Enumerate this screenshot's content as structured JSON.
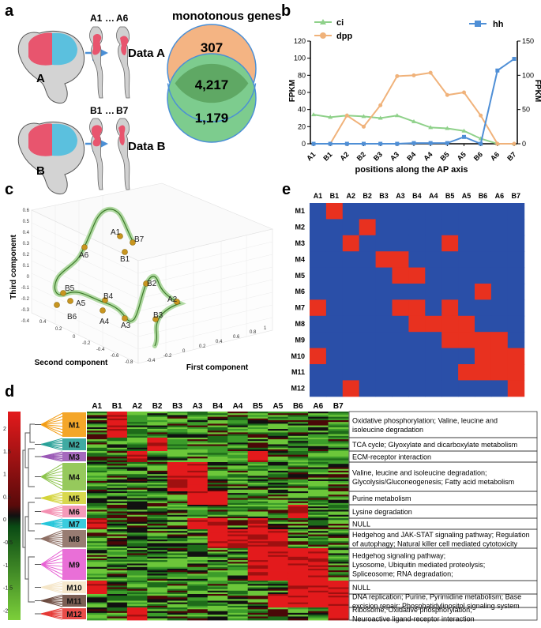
{
  "panels": {
    "a": "a",
    "b": "b",
    "c": "c",
    "d": "d",
    "e": "e"
  },
  "panel_a": {
    "venn_title": "monotonous genes",
    "venn_top": "307",
    "venn_mid": "4,217",
    "venn_bot": "1,179",
    "row1": {
      "disc": "A",
      "first": "A1",
      "dots": "…",
      "last": "A6",
      "dataset": "Data A"
    },
    "row2": {
      "disc": "B",
      "first": "B1",
      "dots": "…",
      "last": "B7",
      "dataset": "Data B"
    },
    "colors": {
      "pink": "#e8556e",
      "cyan": "#5bc0de",
      "orange": "#f4b483",
      "green": "#7dcc8e",
      "dark_green": "#5fa864",
      "arrow": "#4a8fd6"
    }
  },
  "panel_b": {
    "legend_ci": "ci",
    "legend_dpp": "dpp",
    "legend_hh": "hh",
    "ylabel_left": "FPKM",
    "ylabel_right": "FPKM",
    "xlabel": "positions along the AP axis"
  },
  "panel_c": {
    "xlabel": "First component",
    "ylabel": "Second component",
    "zlabel": "Third component",
    "points": [
      "A1",
      "B7",
      "A6",
      "B1",
      "B2",
      "A2",
      "B3",
      "A3",
      "A4",
      "B4",
      "A5",
      "B5",
      "B6"
    ],
    "z_ticks": [
      "0.6",
      "0.5",
      "0.4",
      "0.3",
      "0.2",
      "0.1",
      "0",
      "-0.1",
      "-0.2",
      "-0.3",
      "-0.4"
    ],
    "y_ticks": [
      "0.4",
      "0.2",
      "0",
      "-0.2",
      "-0.4",
      "-0.6",
      "-0.8"
    ],
    "x_ticks": [
      "1",
      "0.8",
      "0.6",
      "0.4",
      "0.2",
      "0",
      "-0.2",
      "-0.4"
    ]
  },
  "panel_d": {
    "columns": [
      "A1",
      "B1",
      "A2",
      "B2",
      "B3",
      "A3",
      "B4",
      "A4",
      "B5",
      "A5",
      "B6",
      "A6",
      "B7"
    ],
    "scale_ticks": [
      "2",
      "1.5",
      "1",
      "0.5",
      "0",
      "-0.5",
      "-1",
      "-1.5",
      "-2"
    ],
    "modules": [
      {
        "name": "M1",
        "desc": [
          "Oxidative phosphorylation; Valine, leucine and",
          "isoleucine degradation"
        ],
        "color": "#f39c12"
      },
      {
        "name": "M2",
        "desc": [
          "TCA cycle; Glyoxylate and dicarboxylate metabolism"
        ],
        "color": "#2aa198"
      },
      {
        "name": "M3",
        "desc": [
          "ECM-receptor interaction"
        ],
        "color": "#9b59b6"
      },
      {
        "name": "M4",
        "desc": [
          "Valine, leucine and isoleucine degradation;",
          "Glycolysis/Gluconeogenesis; Fatty acid metabolism"
        ],
        "color": "#8bc34a"
      },
      {
        "name": "M5",
        "desc": [
          "Purine metabolism"
        ],
        "color": "#d4d43a"
      },
      {
        "name": "M6",
        "desc": [
          "Lysine degradation"
        ],
        "color": "#f48fb1"
      },
      {
        "name": "M7",
        "desc": [
          "NULL"
        ],
        "color": "#26c6da"
      },
      {
        "name": "M8",
        "desc": [
          "Hedgehog and JAK-STAT signaling pathway; Regulation",
          "of autophagy; Natural killer cell mediated cytotoxicity"
        ],
        "color": "#8d6e63"
      },
      {
        "name": "M9",
        "desc": [
          "Hedgehog signaling pathway;",
          "Lysosome, Ubiquitin mediated proteolysis;",
          "Spliceosome; RNA degradation;"
        ],
        "color": "#e75fd3"
      },
      {
        "name": "M10",
        "desc": [
          "NULL"
        ],
        "color": "#f5e6c8"
      },
      {
        "name": "M11",
        "desc": [
          "DNA replication; Purine, Pyrimidine metabolism; Base",
          "excision repair; Phosphatidylinositol signaling system"
        ],
        "color": "#6d4c41"
      },
      {
        "name": "M12",
        "desc": [
          "Ribosome; Oxidative phosphorylation;",
          "Neuroactive ligand-receptor interaction"
        ],
        "color": "#e53935"
      }
    ]
  },
  "panel_e": {
    "columns": [
      "A1",
      "B1",
      "A2",
      "B2",
      "B3",
      "A3",
      "B4",
      "A4",
      "B5",
      "A5",
      "B6",
      "A6",
      "B7"
    ],
    "rows": [
      "M1",
      "M2",
      "M3",
      "M4",
      "M5",
      "M6",
      "M7",
      "M8",
      "M9",
      "M10",
      "M11",
      "M12"
    ],
    "matrix": [
      [
        0,
        1,
        0,
        0,
        0,
        0,
        0,
        0,
        0,
        0,
        0,
        0,
        0
      ],
      [
        0,
        0,
        0,
        1,
        0,
        0,
        0,
        0,
        0,
        0,
        0,
        0,
        0
      ],
      [
        0,
        0,
        1,
        0,
        0,
        0,
        0,
        0,
        1,
        0,
        0,
        0,
        0
      ],
      [
        0,
        0,
        0,
        0,
        1,
        1,
        0,
        0,
        0,
        0,
        0,
        0,
        0
      ],
      [
        0,
        0,
        0,
        0,
        0,
        1,
        1,
        0,
        0,
        0,
        0,
        0,
        0
      ],
      [
        0,
        0,
        0,
        0,
        0,
        0,
        0,
        0,
        0,
        0,
        1,
        0,
        0
      ],
      [
        1,
        0,
        0,
        0,
        0,
        1,
        1,
        0,
        1,
        0,
        0,
        0,
        0
      ],
      [
        0,
        0,
        0,
        0,
        0,
        0,
        1,
        1,
        1,
        1,
        0,
        0,
        0
      ],
      [
        0,
        0,
        0,
        0,
        0,
        0,
        0,
        0,
        1,
        1,
        1,
        1,
        0
      ],
      [
        1,
        0,
        0,
        0,
        0,
        0,
        0,
        0,
        0,
        0,
        1,
        1,
        1
      ],
      [
        0,
        0,
        0,
        0,
        0,
        0,
        0,
        0,
        0,
        1,
        1,
        1,
        1
      ],
      [
        0,
        0,
        1,
        0,
        0,
        0,
        0,
        0,
        0,
        0,
        0,
        0,
        1
      ]
    ],
    "color_on": "#e8311f",
    "color_off": "#2a4fa8"
  },
  "chart_data": {
    "type": "line",
    "categories": [
      "A1",
      "B1",
      "A2",
      "B2",
      "B3",
      "A3",
      "B4",
      "A4",
      "B5",
      "A5",
      "B6",
      "A6",
      "B7"
    ],
    "series": [
      {
        "name": "ci",
        "axis": "left",
        "color": "#8fd18a",
        "values": [
          34,
          31,
          33,
          32,
          30,
          33,
          26,
          19,
          18,
          15,
          6,
          0,
          0
        ]
      },
      {
        "name": "dpp",
        "axis": "left",
        "color": "#f0b27a",
        "values": [
          0,
          0,
          33,
          20,
          45,
          79,
          80,
          83,
          57,
          60,
          33,
          0,
          0
        ]
      },
      {
        "name": "hh",
        "axis": "right",
        "color": "#4f8fd6",
        "values": [
          0,
          0,
          0,
          0,
          0,
          0,
          1,
          1,
          1,
          10,
          0,
          107,
          124
        ]
      }
    ],
    "ylim_left": [
      0,
      120
    ],
    "ylim_right": [
      0,
      150
    ],
    "yticks_left": [
      0,
      20,
      40,
      60,
      80,
      100,
      120
    ],
    "yticks_right": [
      0,
      50,
      100,
      150
    ],
    "xlabel": "positions along the AP axis",
    "ylabel": "FPKM",
    "ylabel_right": "FPKM"
  }
}
